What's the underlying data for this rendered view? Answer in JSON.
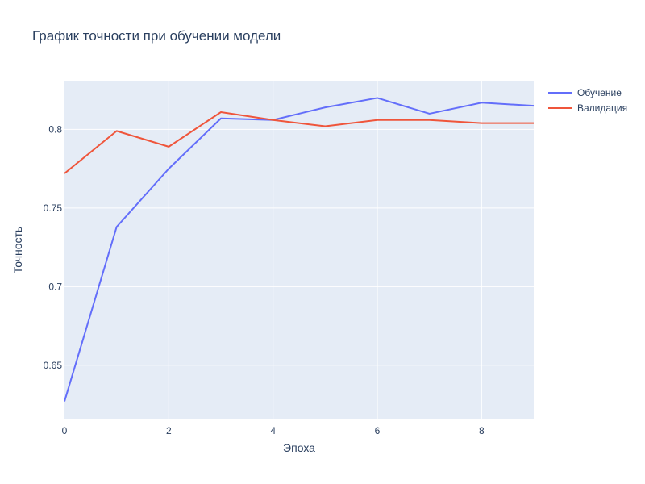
{
  "chart_data": {
    "type": "line",
    "title": "График точности при обучении модели",
    "xlabel": "Эпоха",
    "ylabel": "Точность",
    "xlim": [
      0,
      9
    ],
    "ylim": [
      0.6155,
      0.831
    ],
    "x_ticks": [
      0,
      2,
      4,
      6,
      8
    ],
    "x_tick_labels": [
      "0",
      "2",
      "4",
      "6",
      "8"
    ],
    "y_ticks": [
      0.65,
      0.7,
      0.75,
      0.8
    ],
    "y_tick_labels": [
      "0.65",
      "0.7",
      "0.75",
      "0.8"
    ],
    "grid": true,
    "legend_position": "top-right, outside plot",
    "x": [
      0,
      1,
      2,
      3,
      4,
      5,
      6,
      7,
      8,
      9
    ],
    "series": [
      {
        "name": "Обучение",
        "color": "#636efa",
        "values": [
          0.627,
          0.738,
          0.775,
          0.807,
          0.806,
          0.814,
          0.82,
          0.81,
          0.817,
          0.815
        ]
      },
      {
        "name": "Валидация",
        "color": "#ef553b",
        "values": [
          0.772,
          0.799,
          0.789,
          0.811,
          0.806,
          0.802,
          0.806,
          0.806,
          0.804,
          0.804
        ]
      }
    ],
    "colors": {
      "plot_background": "#e5ecf6",
      "grid": "#ffffff",
      "text": "#2a3f5f"
    }
  }
}
